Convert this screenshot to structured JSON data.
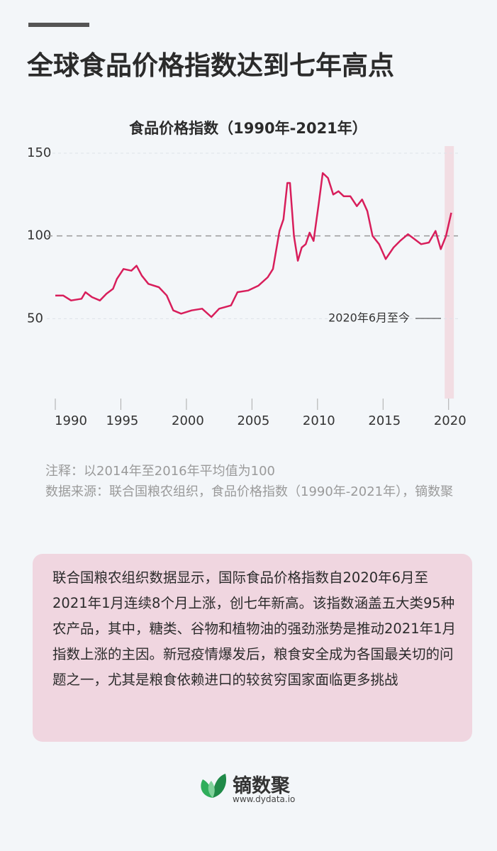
{
  "header": {
    "title": "全球食品价格指数达到七年高点"
  },
  "chart_data": {
    "type": "line",
    "title": "食品价格指数（1990年-2021年）",
    "x": [
      1990.0,
      1990.6,
      1991.2,
      1992.0,
      1992.3,
      1992.8,
      1993.4,
      1993.9,
      1994.4,
      1994.7,
      1995.2,
      1995.8,
      1996.2,
      1996.6,
      1997.1,
      1997.9,
      1998.5,
      1999.0,
      1999.6,
      2000.4,
      2001.2,
      2001.9,
      2002.5,
      2003.4,
      2003.9,
      2004.7,
      2005.5,
      2006.2,
      2006.6,
      2007.1,
      2007.4,
      2007.7,
      2007.9,
      2008.2,
      2008.5,
      2008.8,
      2009.1,
      2009.4,
      2009.7,
      2010.1,
      2010.4,
      2010.8,
      2011.2,
      2011.6,
      2012.0,
      2012.5,
      2013.0,
      2013.4,
      2013.8,
      2014.2,
      2014.7,
      2015.2,
      2015.8,
      2016.3,
      2016.9,
      2017.4,
      2017.9,
      2018.5,
      2019.0,
      2019.4,
      2019.8,
      2020.2
    ],
    "values": [
      64,
      64,
      61,
      62,
      66,
      63,
      61,
      65,
      68,
      74,
      80,
      79,
      82,
      76,
      71,
      69,
      64,
      55,
      53,
      55,
      56,
      51,
      56,
      58,
      66,
      67,
      70,
      75,
      80,
      103,
      110,
      132,
      132,
      100,
      85,
      93,
      95,
      102,
      97,
      120,
      138,
      135,
      125,
      127,
      124,
      124,
      118,
      122,
      115,
      100,
      95,
      86,
      93,
      97,
      101,
      98,
      95,
      96,
      103,
      92,
      100,
      114
    ],
    "color": "#d81e5b",
    "xlim": [
      1990,
      2020.5
    ],
    "xticks": [
      1990,
      1995,
      2000,
      2005,
      2010,
      2015,
      2020
    ],
    "ylim": [
      0,
      150
    ],
    "yticks": [
      50,
      100,
      150
    ],
    "grid": true,
    "shaded_xrange": [
      2019.7,
      2020.4
    ],
    "annotation": "2020年6月至今"
  },
  "notes": [
    "注释：以2014年至2016年平均值为100",
    "数据来源：联合国粮农组织，食品价格指数（1990年-2021年），镝数聚"
  ],
  "summary": "联合国粮农组织数据显示，国际食品价格指数自2020年6月至2021年1月连续8个月上涨，创七年新高。该指数涵盖五大类95种农产品，其中，糖类、谷物和植物油的强劲涨势是推动2021年1月指数上涨的主因。新冠疫情爆发后，粮食安全成为各国最关切的问题之一，尤其是粮食依赖进口的较贫穷国家面临更多挑战",
  "brand": {
    "name": "镝数聚",
    "url": "www.dydata.io"
  }
}
